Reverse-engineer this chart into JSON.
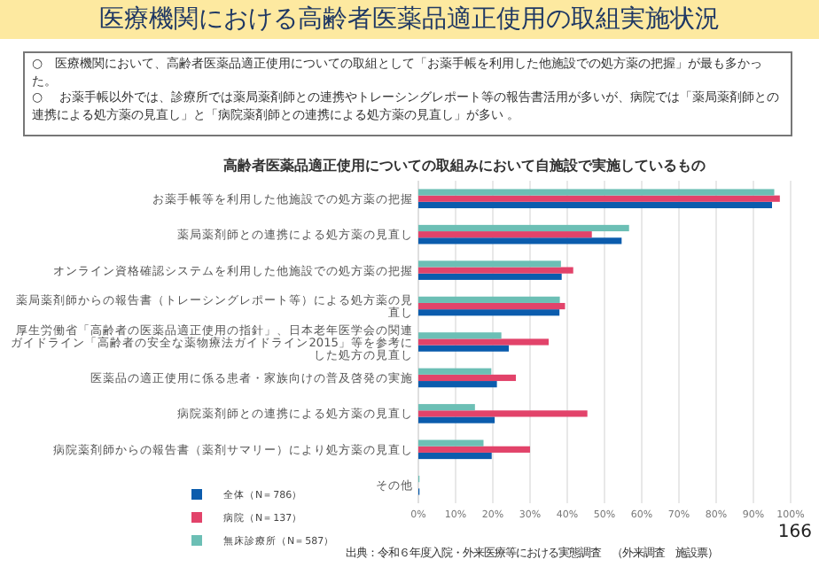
{
  "chart_data": {
    "type": "bar",
    "orientation": "horizontal",
    "title": "医療機関における高齢者医薬品適正使用の取組実施状況",
    "subtitle": "高齢者医薬品適正使用についての取組みにおいて自施設で実施しているもの",
    "annotations": [
      "○　医療機関において、高齢者医薬品適正使用についての取組として「お薬手帳を利用した他施設での処方薬の把握」が最も多かった。",
      "○　 お薬手帳以外では、診療所では薬局薬剤師との連携やトレーシングレポート等の報告書活用が多いが、病院では「薬局薬剤師との連携による処方薬の見直し」と「病院薬剤師との連携による処方薬の見直し」が多い 。",
      "出典：令和６年度入院・外来医療等における実態調査　（外来調査　施設票）",
      "166"
    ],
    "categories": [
      "お薬手帳等を利用した他施設での処方薬の把握",
      "薬局薬剤師との連携による処方薬の見直し",
      "オンライン資格確認システムを利用した他施設での処方薬の把握",
      "薬局薬剤師からの報告書（トレーシングレポート等）による処方薬の見直し",
      "厚生労働省「高齢者の医薬品適正使用の指針」、日本老年医学会の関連ガイドライン「高齢者の安全な薬物療法ガイドライン2015」等を参考にした処方の見直し",
      "医薬品の適正使用に係る患者・家族向けの普及啓発の実施",
      "病院薬剤師との連携による処方薬の見直し",
      "病院薬剤師からの報告書（薬剤サマリー）により処方薬の見直し",
      "その他"
    ],
    "series": [
      {
        "name": "全体（N＝786）",
        "color": "#0b5cad",
        "values": [
          95.0,
          54.6,
          38.5,
          37.9,
          24.3,
          21.1,
          20.5,
          19.7,
          0.3
        ]
      },
      {
        "name": "病院（N＝137）",
        "color": "#e2436a",
        "values": [
          97.1,
          46.6,
          41.6,
          39.4,
          35.0,
          26.2,
          45.4,
          30.0,
          0
        ]
      },
      {
        "name": "無床診療所（N＝587）",
        "color": "#6cbfb5",
        "values": [
          95.6,
          56.6,
          38.3,
          38.0,
          22.3,
          19.6,
          15.2,
          17.5,
          0.3
        ]
      }
    ],
    "xlim": [
      0,
      100
    ],
    "xticks": [
      {
        "value": 0,
        "label": "0%"
      },
      {
        "value": 10,
        "label": "10%"
      },
      {
        "value": 20,
        "label": "20%"
      },
      {
        "value": 30,
        "label": "30%"
      },
      {
        "value": 40,
        "label": "40%"
      },
      {
        "value": 50,
        "label": "50%"
      },
      {
        "value": 60,
        "label": "60%"
      },
      {
        "value": 70,
        "label": "70%"
      },
      {
        "value": 80,
        "label": "80%"
      },
      {
        "value": 90,
        "label": "90%"
      },
      {
        "value": 100,
        "label": "100%"
      }
    ],
    "grid": "x",
    "legend": "bottom left"
  }
}
